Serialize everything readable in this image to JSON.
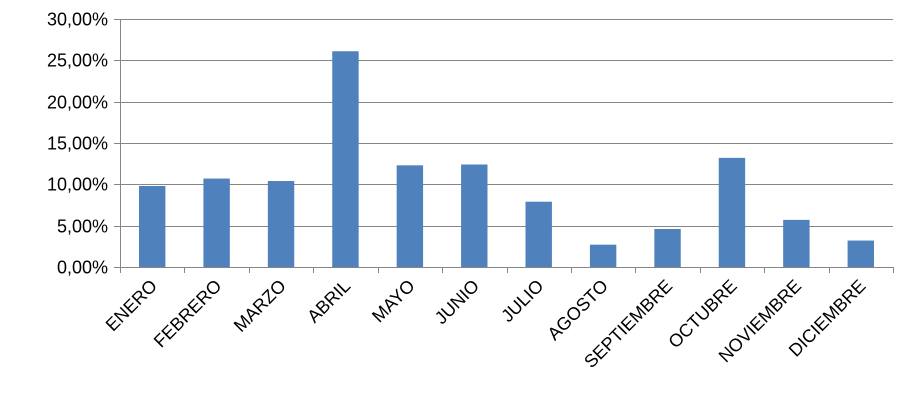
{
  "chart_data": {
    "type": "bar",
    "title": "",
    "xlabel": "",
    "ylabel": "",
    "categories": [
      "ENERO",
      "FEBRERO",
      "MARZO",
      "ABRIL",
      "MAYO",
      "JUNIO",
      "JULIO",
      "AGOSTO",
      "SEPTIEMBRE",
      "OCTUBRE",
      "NOVIEMBRE",
      "DICIEMBRE"
    ],
    "values": [
      9.8,
      10.7,
      10.4,
      26.1,
      12.3,
      12.4,
      7.9,
      2.7,
      4.6,
      13.2,
      5.7,
      3.2
    ],
    "ylim": [
      0,
      30
    ],
    "yticks": [
      0,
      5,
      10,
      15,
      20,
      25,
      30
    ],
    "ytick_labels": [
      "0,00%",
      "5,00%",
      "10,00%",
      "15,00%",
      "20,00%",
      "25,00%",
      "30,00%"
    ],
    "grid": true,
    "legend": "none",
    "bar_color": "#4F81BD",
    "grid_color": "#868686",
    "axis_color": "#868686"
  }
}
